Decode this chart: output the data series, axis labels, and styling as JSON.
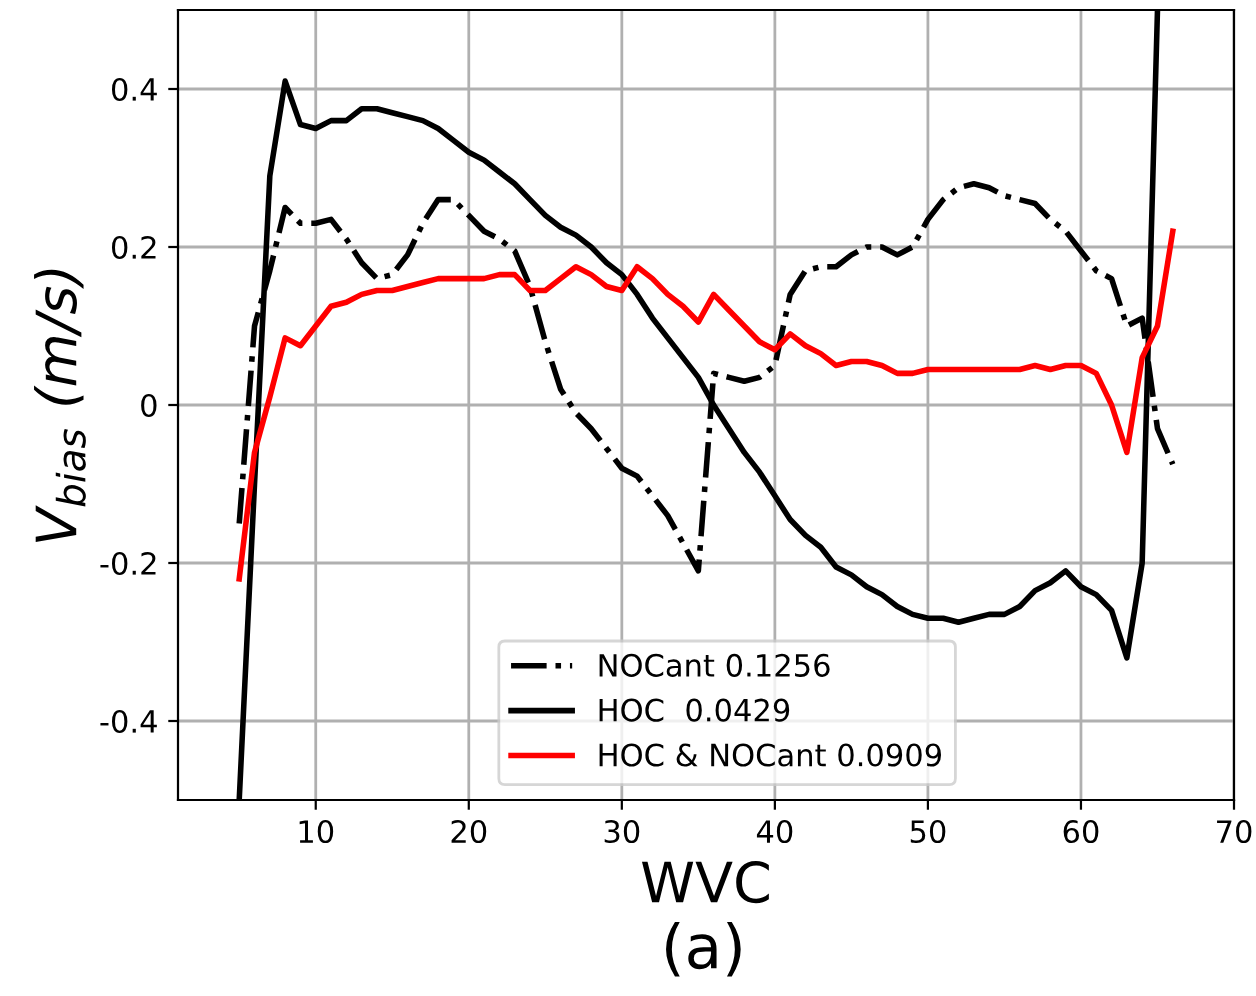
{
  "chart_data": {
    "type": "line",
    "xlabel": "WVC",
    "ylabel": "V$_{bias}$ (m/s)",
    "annotations": [
      "(a)"
    ],
    "x": [
      5,
      6,
      7,
      8,
      9,
      10,
      11,
      12,
      13,
      14,
      15,
      16,
      17,
      18,
      19,
      20,
      21,
      22,
      23,
      24,
      25,
      26,
      27,
      28,
      29,
      30,
      31,
      32,
      33,
      34,
      35,
      36,
      37,
      38,
      39,
      40,
      41,
      42,
      43,
      44,
      45,
      46,
      47,
      48,
      49,
      50,
      51,
      52,
      53,
      54,
      55,
      56,
      57,
      58,
      59,
      60,
      61,
      62,
      63,
      64,
      65,
      66
    ],
    "series": [
      {
        "name": "NOCant 0.1256",
        "color": "#000000",
        "line_style": "dashdot",
        "values": [
          -0.15,
          0.1,
          0.17,
          0.25,
          0.23,
          0.23,
          0.235,
          0.21,
          0.18,
          0.16,
          0.165,
          0.19,
          0.23,
          0.26,
          0.26,
          0.24,
          0.22,
          0.21,
          0.195,
          0.15,
          0.08,
          0.02,
          -0.01,
          -0.03,
          -0.055,
          -0.08,
          -0.09,
          -0.115,
          -0.14,
          -0.175,
          -0.21,
          0.04,
          0.035,
          0.03,
          0.035,
          0.05,
          0.14,
          0.17,
          0.175,
          0.175,
          0.19,
          0.2,
          0.2,
          0.19,
          0.2,
          0.235,
          0.26,
          0.275,
          0.28,
          0.275,
          0.265,
          0.26,
          0.255,
          0.235,
          0.22,
          0.195,
          0.17,
          0.16,
          0.1,
          0.11,
          -0.03,
          -0.075
        ]
      },
      {
        "name": "HOC  0.0429",
        "color": "#000000",
        "line_style": "solid",
        "values": [
          -0.5,
          -0.1,
          0.29,
          0.41,
          0.355,
          0.35,
          0.36,
          0.36,
          0.375,
          0.375,
          0.37,
          0.365,
          0.36,
          0.35,
          0.335,
          0.32,
          0.31,
          0.295,
          0.28,
          0.26,
          0.24,
          0.225,
          0.215,
          0.2,
          0.18,
          0.165,
          0.14,
          0.11,
          0.085,
          0.06,
          0.035,
          0.0,
          -0.03,
          -0.06,
          -0.085,
          -0.115,
          -0.145,
          -0.165,
          -0.18,
          -0.205,
          -0.215,
          -0.23,
          -0.24,
          -0.255,
          -0.265,
          -0.27,
          -0.27,
          -0.275,
          -0.27,
          -0.265,
          -0.265,
          -0.255,
          -0.235,
          -0.225,
          -0.21,
          -0.23,
          -0.24,
          -0.26,
          -0.32,
          -0.2,
          0.5,
          null
        ]
      },
      {
        "name": "HOC & NOCant 0.0909",
        "color": "#ff0000",
        "line_style": "solid",
        "values": [
          -0.22,
          -0.06,
          0.01,
          0.085,
          0.075,
          0.1,
          0.125,
          0.13,
          0.14,
          0.145,
          0.145,
          0.15,
          0.155,
          0.16,
          0.16,
          0.16,
          0.16,
          0.165,
          0.165,
          0.145,
          0.145,
          0.16,
          0.175,
          0.165,
          0.15,
          0.145,
          0.175,
          0.16,
          0.14,
          0.125,
          0.105,
          0.14,
          0.12,
          0.1,
          0.08,
          0.07,
          0.09,
          0.075,
          0.065,
          0.05,
          0.055,
          0.055,
          0.05,
          0.04,
          0.04,
          0.045,
          0.045,
          0.045,
          0.045,
          0.045,
          0.045,
          0.045,
          0.05,
          0.045,
          0.05,
          0.05,
          0.04,
          0.0,
          -0.06,
          0.06,
          0.1,
          0.22
        ]
      }
    ],
    "xlim": [
      1,
      70
    ],
    "ylim": [
      -0.5,
      0.5
    ],
    "xticks": [
      10,
      20,
      30,
      40,
      50,
      60,
      70
    ],
    "yticks": [
      -0.4,
      -0.2,
      0.0,
      0.2,
      0.4
    ],
    "grid": true,
    "legend": "bottom",
    "marker": "none"
  }
}
